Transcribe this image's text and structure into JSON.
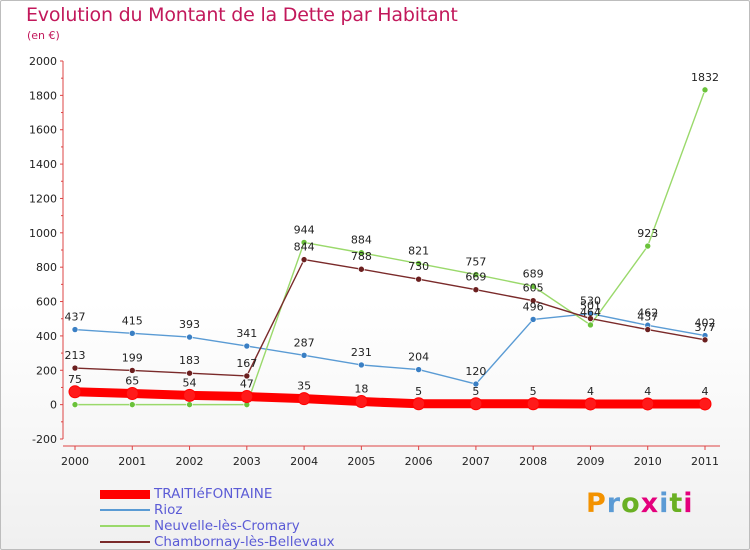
{
  "title": "Evolution du Montant de la Dette par Habitant",
  "subtitle": "(en €)",
  "logo": {
    "text": "Proxiti",
    "colors": [
      "#f39200",
      "#5b9bd5",
      "#6ab023",
      "#e4007c",
      "#5b9bd5",
      "#6ab023",
      "#e4007c"
    ]
  },
  "chart_data": {
    "type": "line",
    "x": [
      "2000",
      "2001",
      "2002",
      "2003",
      "2004",
      "2005",
      "2006",
      "2007",
      "2008",
      "2009",
      "2010",
      "2011"
    ],
    "ylim": [
      -200,
      2000
    ],
    "yticks": [
      "2000",
      "1800",
      "1600",
      "1400",
      "1200",
      "1000",
      "800",
      "600",
      "400",
      "200",
      "0",
      "-200"
    ],
    "ytick_values": [
      2000,
      1800,
      1600,
      1400,
      1200,
      1000,
      800,
      600,
      400,
      200,
      0,
      -200
    ],
    "grid": false,
    "legend_position": "bottom-left",
    "series": [
      {
        "name": "Rioz",
        "color": "#5a9bd4",
        "point_color": "#3a7fc4",
        "values": [
          437,
          415,
          393,
          341,
          287,
          231,
          204,
          120,
          496,
          530,
          462,
          402
        ],
        "labels": [
          "437",
          "415",
          "393",
          "341",
          "287",
          "231",
          "204",
          "120",
          "496",
          "530",
          "462",
          "402"
        ]
      },
      {
        "name": "Neuvelle-lès-Cromary",
        "color": "#9ad96b",
        "point_color": "#6ac23a",
        "values": [
          0,
          0,
          0,
          0,
          944,
          884,
          821,
          757,
          689,
          464,
          923,
          1832
        ],
        "labels": [
          "",
          "",
          "",
          "",
          "944",
          "884",
          "821",
          "757",
          "689",
          "464",
          "923",
          "1832"
        ]
      },
      {
        "name": "Chambornay-lès-Bellevaux",
        "color": "#7a2a2a",
        "point_color": "#6b1f1f",
        "values": [
          213,
          199,
          183,
          167,
          844,
          788,
          730,
          669,
          605,
          501,
          437,
          377
        ],
        "labels": [
          "213",
          "199",
          "183",
          "167",
          "844",
          "788",
          "730",
          "669",
          "605",
          "501",
          "437",
          "377"
        ]
      },
      {
        "name": "TRAITIéFONTAINE",
        "color": "#ff0000",
        "point_color": "#ff1a1a",
        "thick": true,
        "values": [
          75,
          65,
          54,
          47,
          35,
          18,
          5,
          5,
          5,
          4,
          4,
          4
        ],
        "labels": [
          "75",
          "65",
          "54",
          "47",
          "35",
          "18",
          "5",
          "5",
          "5",
          "4",
          "4",
          "4"
        ]
      }
    ]
  },
  "legend": [
    {
      "label": "TRAITIéFONTAINE",
      "color": "#ff0000",
      "thick": true
    },
    {
      "label": "Rioz",
      "color": "#5a9bd4",
      "thick": false
    },
    {
      "label": "Neuvelle-lès-Cromary",
      "color": "#9ad96b",
      "thick": false
    },
    {
      "label": "Chambornay-lès-Bellevaux",
      "color": "#7a2a2a",
      "thick": false
    }
  ]
}
